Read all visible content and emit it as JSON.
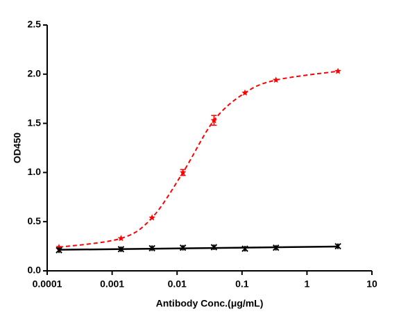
{
  "chart_data": {
    "type": "line",
    "x_label": "Antibody Conc.(μg/mL)",
    "y_label": "OD450",
    "x": [
      0.000152,
      0.00137,
      0.00412,
      0.0123,
      0.037,
      0.111,
      0.333,
      3
    ],
    "series": [
      {
        "color": "#ff0000",
        "marker": "star",
        "fit": "dashed",
        "values": [
          0.24,
          0.33,
          0.54,
          1.0,
          1.53,
          1.81,
          1.94,
          2.03
        ],
        "errors": [
          null,
          null,
          null,
          0.03,
          0.05,
          null,
          null,
          null
        ]
      },
      {
        "color": "#000000",
        "marker": "cross",
        "fit": "solid",
        "values": [
          0.21,
          0.22,
          0.23,
          0.235,
          0.24,
          0.225,
          0.235,
          0.25
        ]
      }
    ],
    "xscale": "log",
    "xlim": [
      0.0001,
      10
    ],
    "xticks": [
      0.0001,
      0.001,
      0.01,
      0.1,
      1,
      10
    ],
    "ylim": [
      0,
      2.5
    ],
    "yticks": [
      {
        "value": 0,
        "label": "0.0"
      },
      {
        "value": 0.5,
        "label": "0.5"
      },
      {
        "value": 1,
        "label": "1.0"
      },
      {
        "value": 1.5,
        "label": "1.5"
      },
      {
        "value": 2,
        "label": "2.0"
      },
      {
        "value": 2.5,
        "label": "2.5"
      }
    ]
  }
}
